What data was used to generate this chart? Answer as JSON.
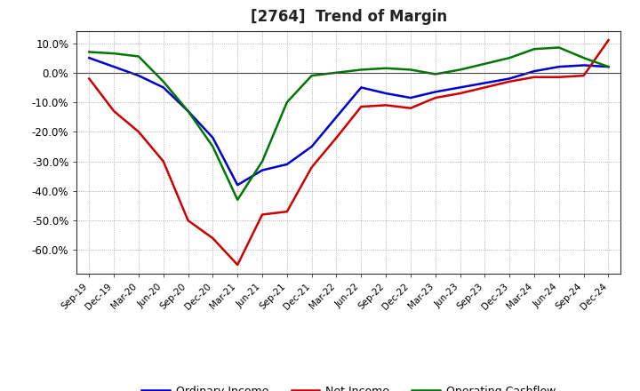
{
  "title": "[2764]  Trend of Margin",
  "x_labels": [
    "Sep-19",
    "Dec-19",
    "Mar-20",
    "Jun-20",
    "Sep-20",
    "Dec-20",
    "Mar-21",
    "Jun-21",
    "Sep-21",
    "Dec-21",
    "Mar-22",
    "Jun-22",
    "Sep-22",
    "Dec-22",
    "Mar-23",
    "Jun-23",
    "Sep-23",
    "Dec-23",
    "Mar-24",
    "Jun-24",
    "Sep-24",
    "Dec-24"
  ],
  "ordinary_income": [
    5.0,
    2.0,
    -1.0,
    -5.0,
    -13.0,
    -22.0,
    -38.0,
    -33.0,
    -31.0,
    -25.0,
    -15.0,
    -5.0,
    -7.0,
    -8.5,
    -6.5,
    -5.0,
    -3.5,
    -2.0,
    0.5,
    2.0,
    2.5,
    2.0
  ],
  "net_income": [
    -2.0,
    -13.0,
    -20.0,
    -30.0,
    -50.0,
    -56.0,
    -65.0,
    -48.0,
    -47.0,
    -32.0,
    -22.0,
    -11.5,
    -11.0,
    -12.0,
    -8.5,
    -7.0,
    -5.0,
    -3.0,
    -1.5,
    -1.5,
    -1.0,
    11.0
  ],
  "operating_cashflow": [
    7.0,
    6.5,
    5.5,
    -3.0,
    -13.0,
    -25.0,
    -43.0,
    -30.0,
    -10.0,
    -1.0,
    0.0,
    1.0,
    1.5,
    1.0,
    -0.5,
    1.0,
    3.0,
    5.0,
    8.0,
    8.5,
    5.0,
    2.0
  ],
  "colors": {
    "ordinary_income": "#0000cc",
    "net_income": "#cc0000",
    "operating_cashflow": "#007700"
  },
  "ylim": [
    -68,
    14
  ],
  "yticks": [
    10.0,
    0.0,
    -10.0,
    -20.0,
    -30.0,
    -40.0,
    -50.0,
    -60.0
  ],
  "background_color": "#ffffff",
  "plot_background": "#ffffff",
  "legend_labels": [
    "Ordinary Income",
    "Net Income",
    "Operating Cashflow"
  ]
}
